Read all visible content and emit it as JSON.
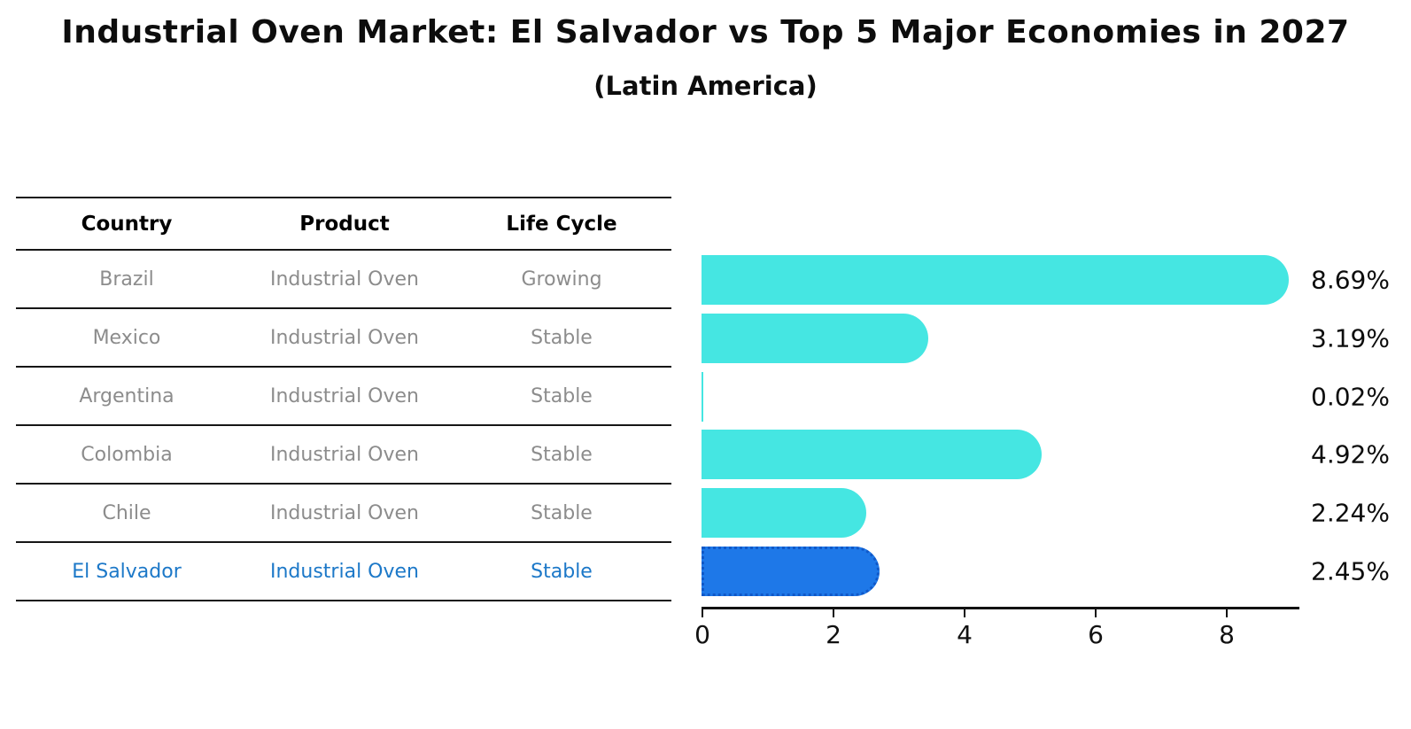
{
  "title": "Industrial Oven Market: El Salvador vs Top 5 Major Economies in 2027",
  "subtitle": "(Latin America)",
  "table": {
    "headers": [
      "Country",
      "Product",
      "Life Cycle"
    ],
    "rows": [
      {
        "country": "Brazil",
        "product": "Industrial Oven",
        "life_cycle": "Growing",
        "highlight": false
      },
      {
        "country": "Mexico",
        "product": "Industrial Oven",
        "life_cycle": "Stable",
        "highlight": false
      },
      {
        "country": "Argentina",
        "product": "Industrial Oven",
        "life_cycle": "Stable",
        "highlight": false
      },
      {
        "country": "Colombia",
        "product": "Industrial Oven",
        "life_cycle": "Stable",
        "highlight": false
      },
      {
        "country": "Chile",
        "product": "Industrial Oven",
        "life_cycle": "Stable",
        "highlight": false
      },
      {
        "country": "El Salvador",
        "product": "Industrial Oven",
        "life_cycle": "Stable",
        "highlight": true
      }
    ]
  },
  "chart_data": {
    "type": "bar",
    "orientation": "horizontal",
    "title": "Industrial Oven Market: El Salvador vs Top 5 Major Economies in 2027 (Latin America)",
    "categories": [
      "Brazil",
      "Mexico",
      "Argentina",
      "Colombia",
      "Chile",
      "El Salvador"
    ],
    "values": [
      8.69,
      3.19,
      0.02,
      4.92,
      2.24,
      2.45
    ],
    "value_labels": [
      "8.69%",
      "3.19%",
      "0.02%",
      "4.92%",
      "2.24%",
      "2.45%"
    ],
    "x_ticks": [
      0,
      2,
      4,
      6,
      8
    ],
    "xlim": [
      0,
      9.1
    ],
    "xlabel": "",
    "ylabel": "",
    "grid": false,
    "legend": false,
    "bar_color": "#45e6e2",
    "highlight_color": "#1e78e8",
    "highlight_index": 5,
    "highlight_border_style": "dotted"
  },
  "colors": {
    "highlight_text": "#1c78c8",
    "row_text": "#8c8c8c",
    "header_text": "#000000",
    "axis_color": "#111111"
  }
}
